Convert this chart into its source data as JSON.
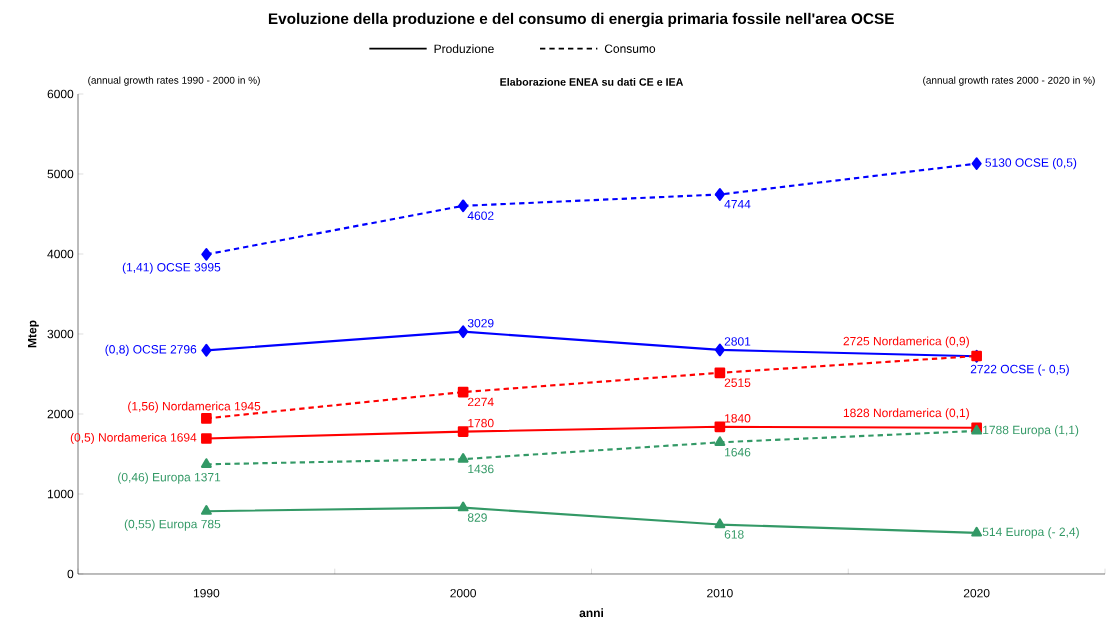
{
  "chart_data": {
    "type": "line",
    "title": "Evoluzione della produzione e del consumo di energia primaria fossile nell'area OCSE",
    "xlabel": "anni",
    "ylabel": "Mtep",
    "categories": [
      "1990",
      "2000",
      "2010",
      "2020"
    ],
    "ylim": [
      0,
      6000
    ],
    "yticks": [
      0,
      1000,
      2000,
      3000,
      4000,
      5000,
      6000
    ],
    "annotations": [
      "(annual growth rates 1990 - 2000  in %)",
      "Elaborazione ENEA su dati CE e IEA",
      "(annual growth rates 2000 - 2020  in %)",
      "Produzione",
      "Consumo"
    ],
    "series": [
      {
        "color": "#0000ff",
        "marker": "diamond",
        "line_style": "dashed",
        "values": [
          3995,
          4602,
          4744,
          5130
        ],
        "value_labels": [
          "(1,41)  OCSE  3995",
          "4602",
          "4744",
          "5130 OCSE (0,5)"
        ]
      },
      {
        "color": "#0000ff",
        "marker": "diamond",
        "line_style": "solid",
        "values": [
          2796,
          3029,
          2801,
          2722
        ],
        "value_labels": [
          "(0,8)  OCSE 2796",
          "3029",
          "2801",
          "2722 OCSE (- 0,5)"
        ]
      },
      {
        "color": "#ff0000",
        "marker": "square",
        "line_style": "dashed",
        "values": [
          1945,
          2274,
          2515,
          2725
        ],
        "value_labels": [
          "(1,56) Nordamerica 1945",
          "2274",
          "2515",
          "2725 Nordamerica (0,9)"
        ]
      },
      {
        "color": "#ff0000",
        "marker": "square",
        "line_style": "solid",
        "values": [
          1694,
          1780,
          1840,
          1828
        ],
        "value_labels": [
          "(0,5) Nordamerica 1694",
          "1780",
          "1840",
          "1828 Nordamerica (0,1)"
        ]
      },
      {
        "color": "#339966",
        "marker": "triangle",
        "line_style": "dashed",
        "values": [
          1371,
          1436,
          1646,
          1788
        ],
        "value_labels": [
          "(0,46) Europa  1371",
          "1436",
          "1646",
          "1788 Europa (1,1)"
        ]
      },
      {
        "color": "#339966",
        "marker": "triangle",
        "line_style": "solid",
        "values": [
          785,
          829,
          618,
          514
        ],
        "value_labels": [
          "(0,55)  Europa  785",
          "829",
          "618",
          "514 Europa (- 2,4)"
        ]
      }
    ]
  }
}
